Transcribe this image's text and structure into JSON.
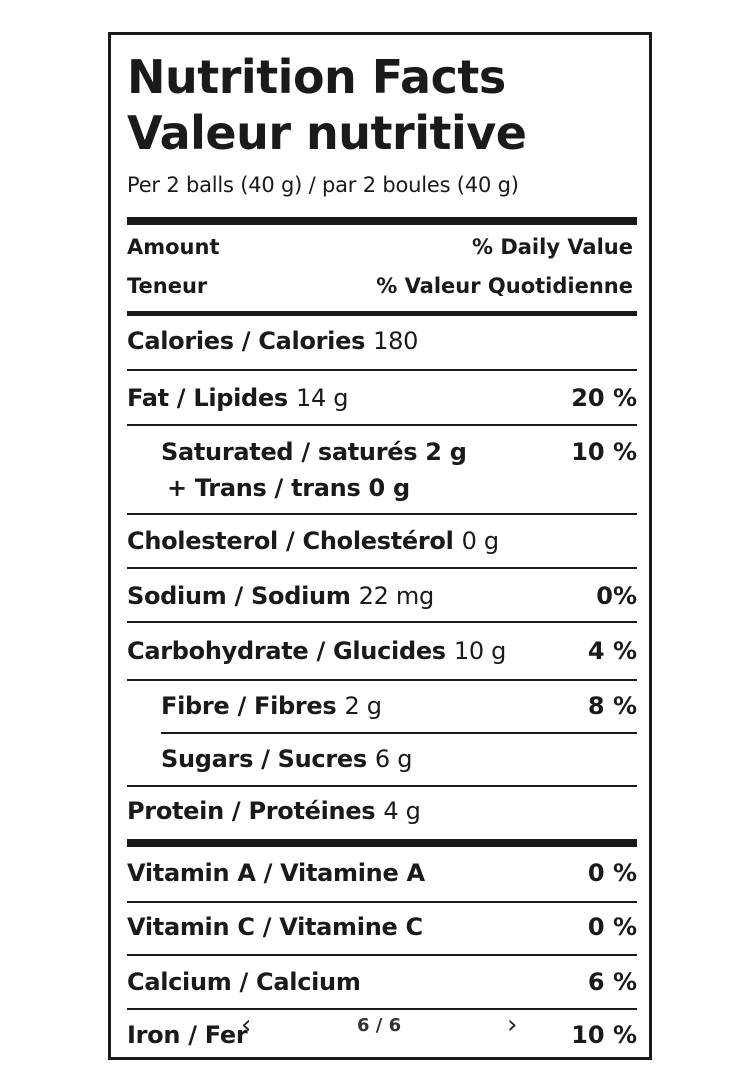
{
  "title_en": "Nutrition Facts",
  "title_fr": "Valeur nutritive",
  "serving": "Per 2 balls (40 g) / par 2 boules (40 g)",
  "header": {
    "amount": "Amount",
    "daily_value": "% Daily Value",
    "teneur": "Teneur",
    "valeur": "% Valeur Quotidienne"
  },
  "nutrients": {
    "calories": {
      "name": "Calories / Calories",
      "amount": "180"
    },
    "fat": {
      "name": "Fat / Lipides",
      "amount": "14 g",
      "pct": "20 %"
    },
    "saturated": {
      "name": "Saturated / saturés 2 g",
      "pct": "10 %"
    },
    "trans": {
      "name": "+ Trans / trans 0 g"
    },
    "cholesterol": {
      "name": "Cholesterol / Cholestérol",
      "amount": "0 g"
    },
    "sodium": {
      "name": "Sodium / Sodium",
      "amount": "22 mg",
      "pct": "0%"
    },
    "carbohydrate": {
      "name": "Carbohydrate / Glucides",
      "amount": "10 g",
      "pct": "4 %"
    },
    "fibre": {
      "name": "Fibre / Fibres",
      "amount": "2 g",
      "pct": "8 %"
    },
    "sugars": {
      "name": "Sugars / Sucres",
      "amount": "6 g"
    },
    "protein": {
      "name": "Protein / Protéines",
      "amount": "4 g"
    }
  },
  "vitamins": {
    "vitamin_a": {
      "name": "Vitamin A / Vitamine A",
      "pct": "0 %"
    },
    "vitamin_c": {
      "name": "Vitamin C / Vitamine C",
      "pct": "0 %"
    },
    "calcium": {
      "name": "Calcium / Calcium",
      "pct": "6 %"
    },
    "iron": {
      "name": "Iron / Fer",
      "pct": "10 %"
    }
  },
  "pager": {
    "text": "6 / 6",
    "prev_icon": "chevron-left-icon",
    "next_icon": "chevron-right-icon"
  }
}
